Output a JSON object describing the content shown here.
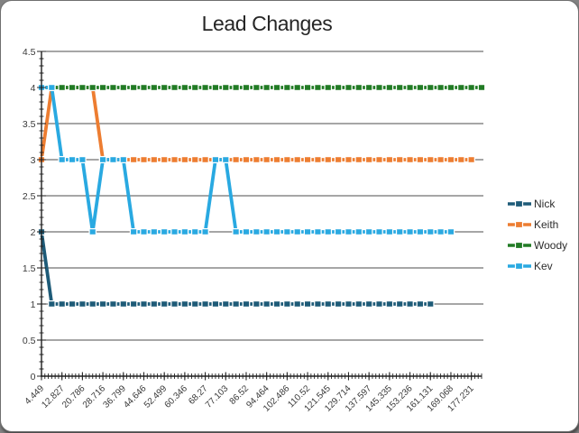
{
  "panel": {
    "background": "#ffffff",
    "page_background": "#828282"
  },
  "chart_data": {
    "type": "line",
    "title": "Lead Changes",
    "xlabel": "",
    "ylabel": "",
    "ylim": [
      0,
      4.5
    ],
    "y_major_step": 0.5,
    "y_minor_step": 0.1,
    "grid": true,
    "legend_position": "right",
    "line_style": "solid lines with white-outlined square markers at each point",
    "x_points_per_label": 2,
    "x_labels": [
      "4.449",
      "12.827",
      "20.786",
      "28.716",
      "36.799",
      "44.646",
      "52.499",
      "60.346",
      "68.27",
      "77.103",
      "86.52",
      "94.464",
      "102.486",
      "110.52",
      "121.545",
      "129.714",
      "137.597",
      "145.335",
      "153.236",
      "161.131",
      "169.068",
      "177.231"
    ],
    "y_labels": [
      "0",
      "0.5",
      "1",
      "1.5",
      "2",
      "2.5",
      "3",
      "3.5",
      "4",
      "4.5"
    ],
    "series": [
      {
        "name": "Nick",
        "color": "#1E5B78",
        "values": [
          2,
          1,
          1,
          1,
          1,
          1,
          1,
          1,
          1,
          1,
          1,
          1,
          1,
          1,
          1,
          1,
          1,
          1,
          1,
          1,
          1,
          1,
          1,
          1,
          1,
          1,
          1,
          1,
          1,
          1,
          1,
          1,
          1,
          1,
          1,
          1,
          1,
          1,
          1
        ]
      },
      {
        "name": "Keith",
        "color": "#ED7D31",
        "values": [
          3,
          4,
          4,
          4,
          4,
          4,
          3,
          3,
          3,
          3,
          3,
          3,
          3,
          3,
          3,
          3,
          3,
          3,
          3,
          3,
          3,
          3,
          3,
          3,
          3,
          3,
          3,
          3,
          3,
          3,
          3,
          3,
          3,
          3,
          3,
          3,
          3,
          3,
          3,
          3,
          3,
          3,
          3
        ]
      },
      {
        "name": "Woody",
        "color": "#217B24",
        "values": [
          4,
          4,
          4,
          4,
          4,
          4,
          4,
          4,
          4,
          4,
          4,
          4,
          4,
          4,
          4,
          4,
          4,
          4,
          4,
          4,
          4,
          4,
          4,
          4,
          4,
          4,
          4,
          4,
          4,
          4,
          4,
          4,
          4,
          4,
          4,
          4,
          4,
          4,
          4,
          4,
          4,
          4,
          4,
          4
        ]
      },
      {
        "name": "Kev",
        "color": "#29A9E1",
        "values": [
          4,
          4,
          3,
          3,
          3,
          2,
          3,
          3,
          3,
          2,
          2,
          2,
          2,
          2,
          2,
          2,
          2,
          3,
          3,
          2,
          2,
          2,
          2,
          2,
          2,
          2,
          2,
          2,
          2,
          2,
          2,
          2,
          2,
          2,
          2,
          2,
          2,
          2,
          2,
          2,
          2
        ]
      }
    ]
  }
}
